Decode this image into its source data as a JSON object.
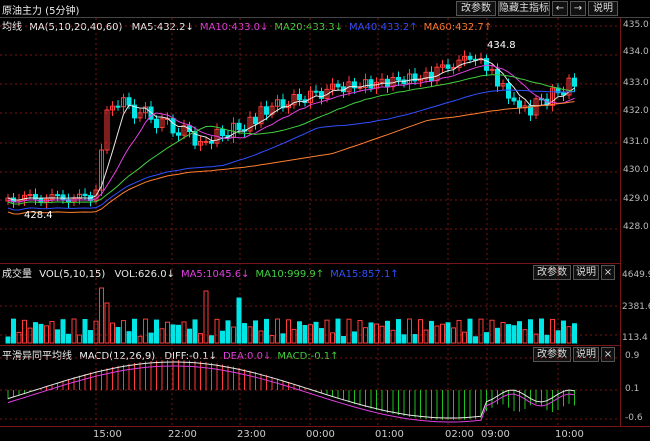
{
  "window": {
    "title": "原油主力 (5分钟)",
    "buttons": [
      "改参数",
      "隐藏主指标",
      "←",
      "→",
      "说明"
    ]
  },
  "main_panel": {
    "indicator": "均线",
    "params": "MA(5,10,20,40,60)",
    "items": [
      {
        "text": "MA5:432.2↓",
        "color": "#e8e8e8"
      },
      {
        "text": "MA10:433.0↓",
        "color": "#e040e0"
      },
      {
        "text": "MA20:433.3↓",
        "color": "#40d040"
      },
      {
        "text": "MA40:433.2↑",
        "color": "#3050ff"
      },
      {
        "text": "MA60:432.7↑",
        "color": "#ff8030"
      }
    ],
    "yticks": [
      "435.0",
      "434.0",
      "433.0",
      "432.0",
      "431.0",
      "430.0",
      "429.0",
      "428.0"
    ],
    "high_label": "434.8",
    "low_label": "428.4"
  },
  "volume_panel": {
    "indicator": "成交量",
    "params": "VOL(5,10,15)",
    "items": [
      {
        "text": "VOL:626.0↓",
        "color": "#e8e8e8"
      },
      {
        "text": "MA5:1045.6↓",
        "color": "#e040e0"
      },
      {
        "text": "MA10:999.9↑",
        "color": "#40d040"
      },
      {
        "text": "MA15:857.1↑",
        "color": "#3050ff"
      }
    ],
    "buttons": [
      "改参数",
      "说明",
      "×"
    ],
    "yticks": [
      "4649.9",
      "2381.6",
      "113.4"
    ]
  },
  "macd_panel": {
    "indicator": "平滑异同平均线",
    "params": "MACD(12,26,9)",
    "items": [
      {
        "text": "DIFF:-0.1↓",
        "color": "#e8e8e8"
      },
      {
        "text": "DEA:0.0↓",
        "color": "#e040e0"
      },
      {
        "text": "MACD:-0.1↑",
        "color": "#40d040"
      }
    ],
    "buttons": [
      "改参数",
      "说明",
      "×"
    ],
    "yticks": [
      "0.9",
      "0.1",
      "-0.6"
    ]
  },
  "time_axis": [
    "15:00",
    "22:00",
    "23:00",
    "00:00",
    "01:00",
    "02:00",
    "09:00",
    "10:00"
  ],
  "colors": {
    "up": "#ff3c3c",
    "down": "#00e5e5",
    "grid": "#7a1515"
  }
}
